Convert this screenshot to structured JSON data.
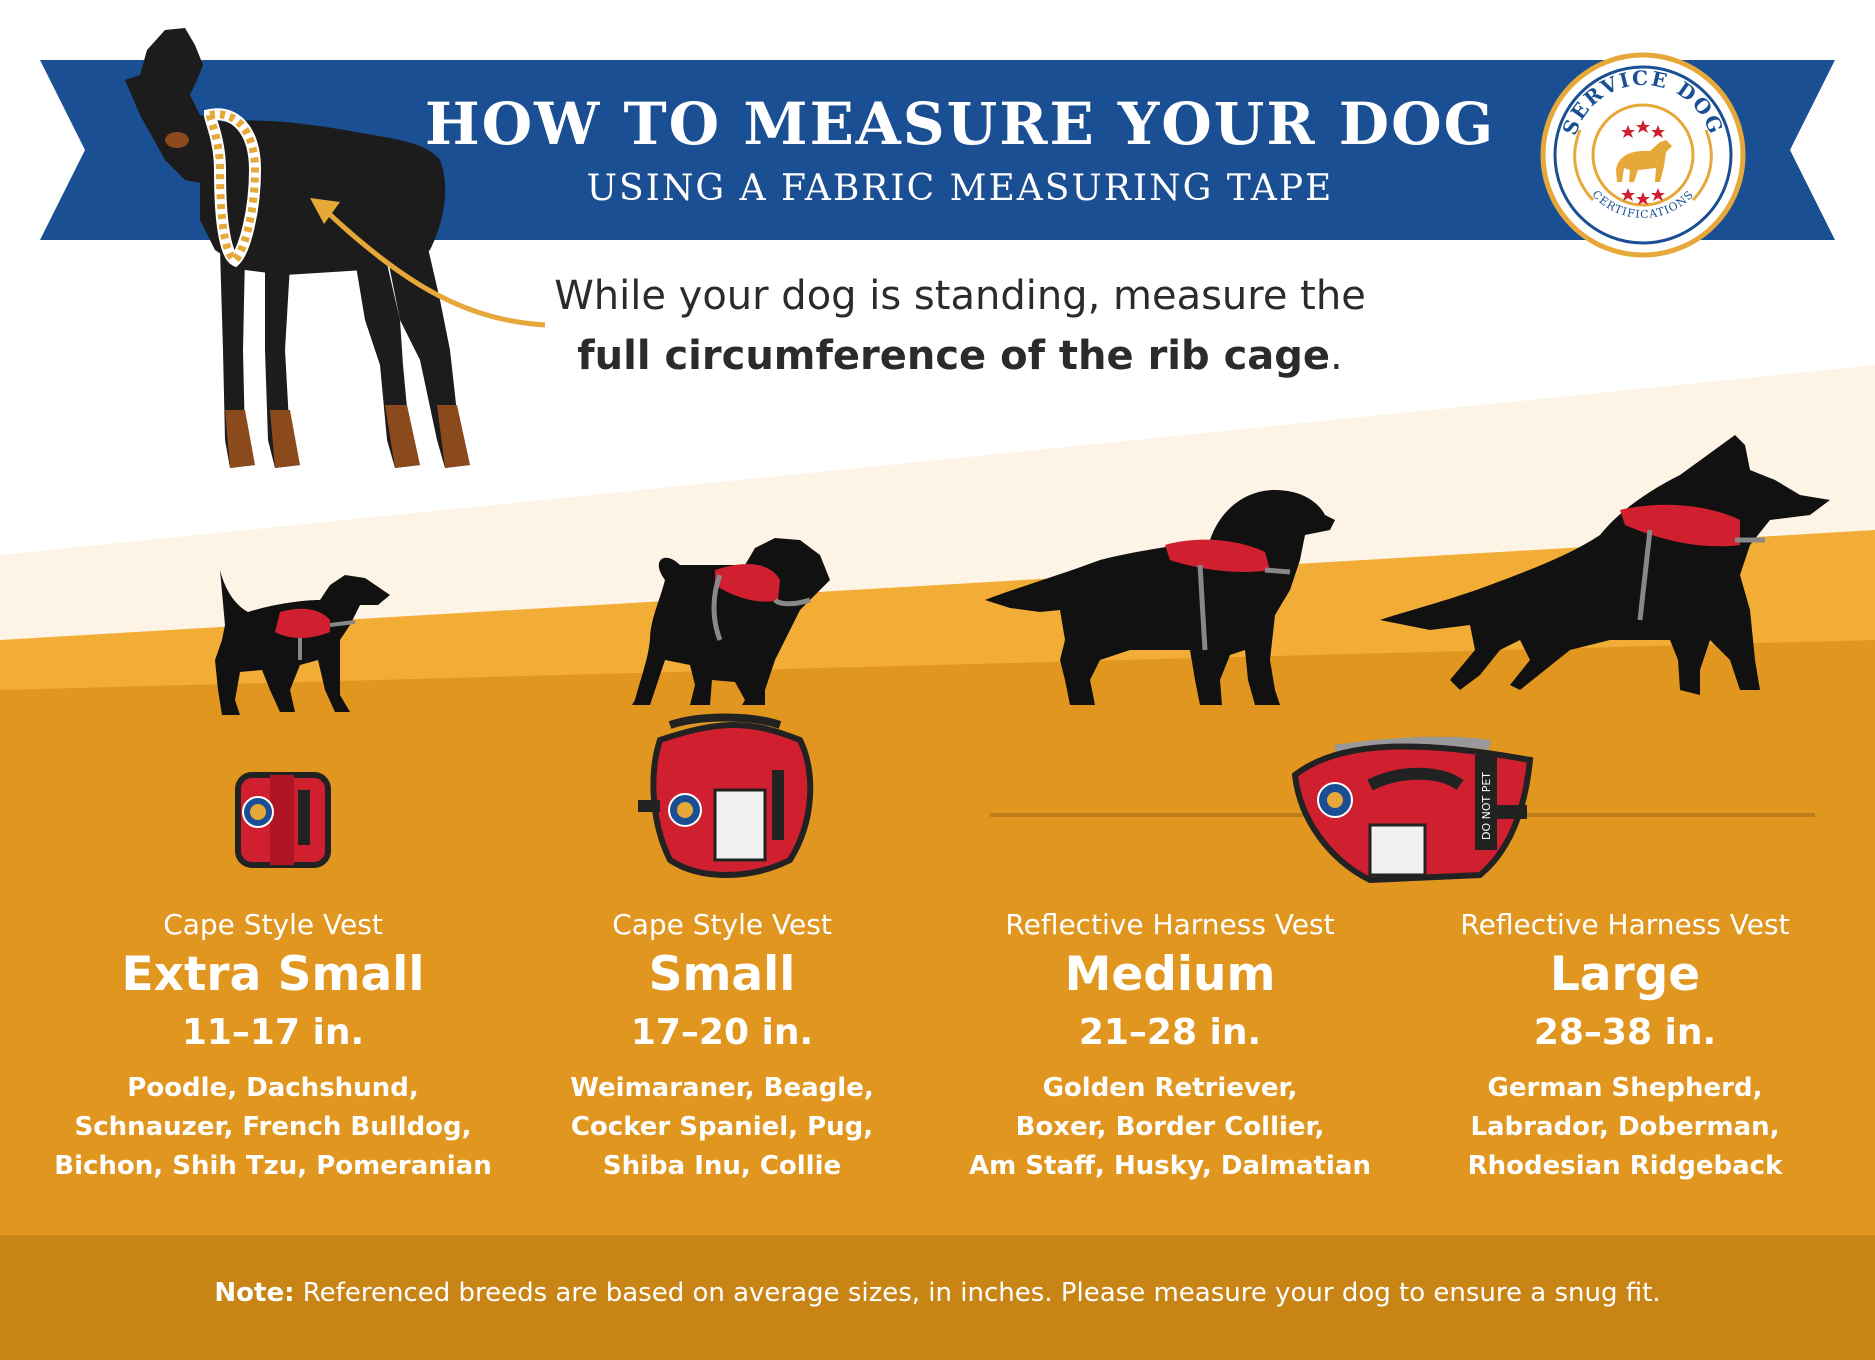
{
  "header": {
    "title": "HOW TO MEASURE YOUR DOG",
    "subtitle": "USING A FABRIC MEASURING TAPE"
  },
  "badge": {
    "top_text": "SERVICE DOG",
    "bottom_text": "CERTIFICATIONS"
  },
  "instruction": {
    "line1": "While your dog is standing, measure the",
    "line2_bold": "full circumference of the rib cage",
    "line2_end": "."
  },
  "sizes": [
    {
      "style": "Cape Style Vest",
      "size": "Extra Small",
      "range": "11–17 in.",
      "breeds": [
        "Poodle, Dachshund,",
        "Schnauzer, French Bulldog,",
        "Bichon, Shih Tzu, Pomeranian"
      ]
    },
    {
      "style": "Cape Style Vest",
      "size": "Small",
      "range": "17–20 in.",
      "breeds": [
        "Weimaraner, Beagle,",
        "Cocker Spaniel, Pug,",
        "Shiba Inu, Collie"
      ]
    },
    {
      "style": "Reflective Harness Vest",
      "size": "Medium",
      "range": "21–28 in.",
      "breeds": [
        "Golden Retriever,",
        "Boxer, Border Collier,",
        "Am Staff, Husky, Dalmatian"
      ]
    },
    {
      "style": "Reflective Harness Vest",
      "size": "Large",
      "range": "28–38 in.",
      "breeds": [
        "German Shepherd,",
        "Labrador, Doberman,",
        "Rhodesian Ridgeback"
      ]
    }
  ],
  "vest_labels": {
    "do_not_pet": "DO NOT PET"
  },
  "note": {
    "label": "Note:",
    "text": " Referenced breeds are based on average sizes, in inches. Please measure your dog to ensure a snug fit."
  },
  "colors": {
    "banner_blue": "#1a4f93",
    "orange_light": "#f2ad36",
    "orange_main": "#e0961f",
    "orange_dark": "#c98416",
    "vest_red": "#d0202f",
    "silhouette": "#111111"
  }
}
